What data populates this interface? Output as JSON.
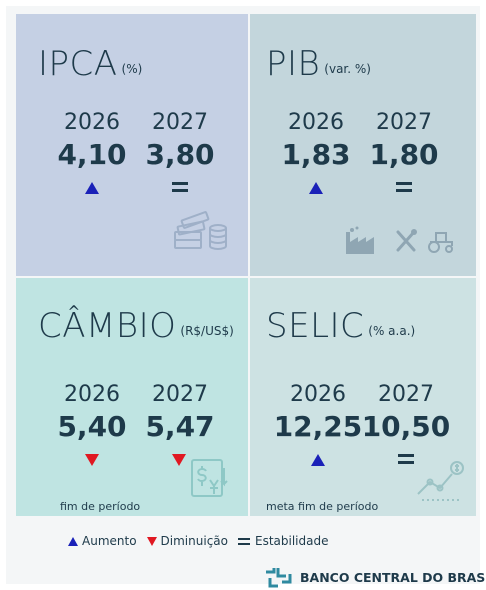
{
  "ipca": {
    "title": "IPCA",
    "unit": "(%)",
    "years": [
      "2026",
      "2027"
    ],
    "values": [
      "4,10",
      "3,80"
    ],
    "trends": [
      "up",
      "equal"
    ],
    "icon": "money-stack-icon"
  },
  "pib": {
    "title": "PIB",
    "unit": "(var. %)",
    "years": [
      "2026",
      "2027"
    ],
    "values": [
      "1,83",
      "1,80"
    ],
    "trends": [
      "up",
      "equal"
    ],
    "icons": [
      "factory-icon",
      "tools-icon",
      "tractor-icon"
    ]
  },
  "cambio": {
    "title": "CÂMBIO",
    "unit": "(R$/US$)",
    "years": [
      "2026",
      "2027"
    ],
    "values": [
      "5,40",
      "5,47"
    ],
    "trends": [
      "down",
      "down"
    ],
    "note": "fim de período",
    "icon": "currency-exchange-icon"
  },
  "selic": {
    "title": "SELIC",
    "unit": "(% a.a.)",
    "years": [
      "2026",
      "2027"
    ],
    "values": [
      "12,25",
      "10,50"
    ],
    "trends": [
      "up",
      "equal"
    ],
    "note": "meta fim de período",
    "icon": "rate-chart-icon"
  },
  "legend": {
    "up": "Aumento",
    "down": "Diminuição",
    "equal": "Estabilidade"
  },
  "footer": {
    "brand": "BANCO CENTRAL DO BRASIL",
    "icon": "bcb-logo-icon"
  },
  "colors": {
    "up": "#1a21b8",
    "down": "#e01822",
    "text": "#1e3a4a",
    "ipca_bg": "#c5d0e4",
    "pib_bg": "#c3d6dc",
    "cambio_bg": "#bfe4e2",
    "selic_bg": "#cde2e3"
  }
}
